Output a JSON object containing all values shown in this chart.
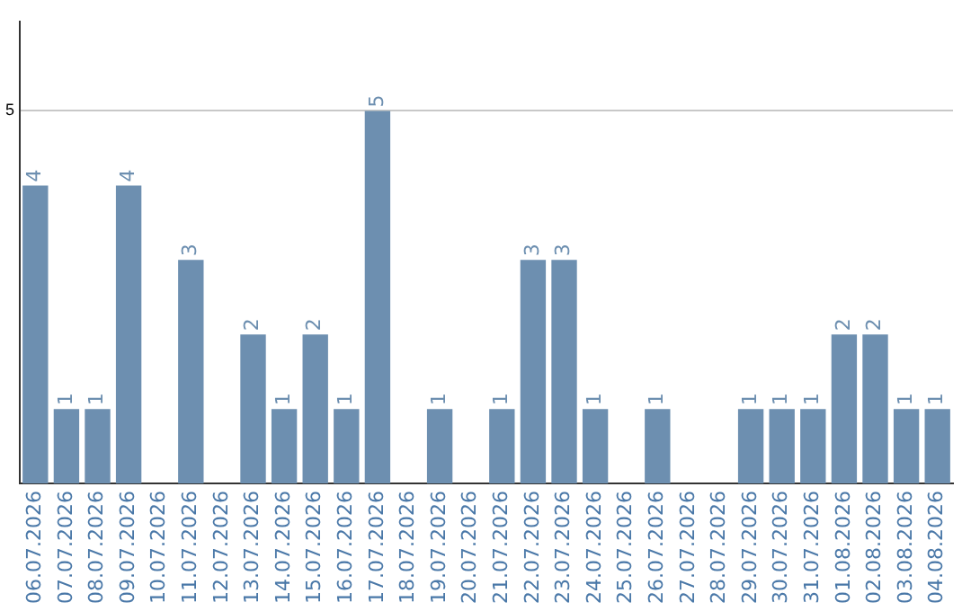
{
  "chart_data": {
    "type": "bar",
    "categories": [
      "06.07.2026",
      "07.07.2026",
      "08.07.2026",
      "09.07.2026",
      "10.07.2026",
      "11.07.2026",
      "12.07.2026",
      "13.07.2026",
      "14.07.2026",
      "15.07.2026",
      "16.07.2026",
      "17.07.2026",
      "18.07.2026",
      "19.07.2026",
      "20.07.2026",
      "21.07.2026",
      "22.07.2026",
      "23.07.2026",
      "24.07.2026",
      "25.07.2026",
      "26.07.2026",
      "27.07.2026",
      "28.07.2026",
      "29.07.2026",
      "30.07.2026",
      "31.07.2026",
      "01.08.2026",
      "02.08.2026",
      "03.08.2026",
      "04.08.2026"
    ],
    "values": [
      4,
      1,
      1,
      4,
      0,
      3,
      0,
      2,
      1,
      2,
      1,
      5,
      0,
      1,
      0,
      1,
      3,
      3,
      1,
      0,
      1,
      0,
      0,
      1,
      1,
      1,
      2,
      2,
      1,
      1
    ],
    "value_labels": [
      "4",
      "1",
      "1",
      "4",
      null,
      "3",
      null,
      "2",
      "1",
      "2",
      "1",
      "5",
      null,
      "1",
      null,
      "1",
      "3",
      "3",
      "1",
      null,
      "1",
      null,
      null,
      "1",
      "1",
      "1",
      "2",
      "2",
      "1",
      "1"
    ],
    "color": "#6d8fb0",
    "ylim": [
      0,
      6.2
    ],
    "yticks": [
      5
    ],
    "grid": "y",
    "legend": false
  }
}
